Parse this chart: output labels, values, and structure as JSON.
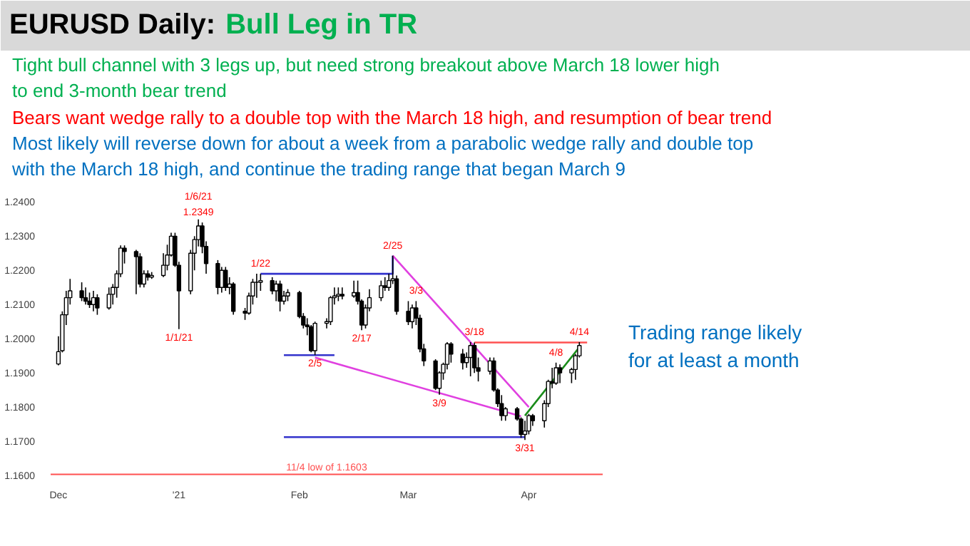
{
  "chart_data": {
    "type": "candlestick",
    "title": "EURUSD Daily:",
    "subtitle": "Bull Leg in TR",
    "color": "#000000",
    "x": [
      "2020-12-01",
      "2020-12-02",
      "2020-12-03",
      "2020-12-04",
      "2020-12-07",
      "2020-12-08",
      "2020-12-09",
      "2020-12-10",
      "2020-12-11",
      "2020-12-14",
      "2020-12-15",
      "2020-12-16",
      "2020-12-17",
      "2020-12-18",
      "2020-12-21",
      "2020-12-22",
      "2020-12-23",
      "2020-12-24",
      "2020-12-25",
      "2020-12-28",
      "2020-12-29",
      "2020-12-30",
      "2020-12-31",
      "2021-01-01",
      "2021-01-04",
      "2021-01-05",
      "2021-01-06",
      "2021-01-07",
      "2021-01-08",
      "2021-01-11",
      "2021-01-12",
      "2021-01-13",
      "2021-01-14",
      "2021-01-15",
      "2021-01-18",
      "2021-01-19",
      "2021-01-20",
      "2021-01-21",
      "2021-01-22",
      "2021-01-25",
      "2021-01-26",
      "2021-01-27",
      "2021-01-28",
      "2021-01-29",
      "2021-02-01",
      "2021-02-02",
      "2021-02-03",
      "2021-02-04",
      "2021-02-05",
      "2021-02-08",
      "2021-02-09",
      "2021-02-10",
      "2021-02-11",
      "2021-02-12",
      "2021-02-15",
      "2021-02-16",
      "2021-02-17",
      "2021-02-18",
      "2021-02-19",
      "2021-02-22",
      "2021-02-23",
      "2021-02-24",
      "2021-02-25",
      "2021-02-26",
      "2021-03-01",
      "2021-03-02",
      "2021-03-03",
      "2021-03-04",
      "2021-03-05",
      "2021-03-08",
      "2021-03-09",
      "2021-03-10",
      "2021-03-11",
      "2021-03-12",
      "2021-03-15",
      "2021-03-16",
      "2021-03-17",
      "2021-03-18",
      "2021-03-19",
      "2021-03-22",
      "2021-03-23",
      "2021-03-24",
      "2021-03-25",
      "2021-03-26",
      "2021-03-29",
      "2021-03-30",
      "2021-03-31",
      "2021-04-01",
      "2021-04-02",
      "2021-04-05",
      "2021-04-06",
      "2021-04-07",
      "2021-04-08",
      "2021-04-09",
      "2021-04-12",
      "2021-04-13",
      "2021-04-14"
    ],
    "ohlc": [
      [
        1.1926,
        1.2007,
        1.1922,
        1.1962
      ],
      [
        1.1965,
        1.208,
        1.196,
        1.207
      ],
      [
        1.207,
        1.214,
        1.204,
        1.212
      ],
      [
        1.212,
        1.2175,
        1.21,
        1.214
      ],
      [
        1.214,
        1.2165,
        1.211,
        1.212
      ],
      [
        1.212,
        1.215,
        1.21,
        1.211
      ],
      [
        1.211,
        1.2135,
        1.209,
        1.21
      ],
      [
        1.21,
        1.214,
        1.208,
        1.212
      ],
      [
        1.212,
        1.213,
        1.207,
        1.209
      ],
      [
        1.209,
        1.215,
        1.2085,
        1.213
      ],
      [
        1.213,
        1.216,
        1.21,
        1.215
      ],
      [
        1.215,
        1.22,
        1.212,
        1.219
      ],
      [
        1.219,
        1.2273,
        1.218,
        1.2265
      ],
      [
        1.2265,
        1.2273,
        1.222,
        1.2255
      ],
      [
        1.2255,
        1.226,
        1.213,
        1.224
      ],
      [
        1.224,
        1.225,
        1.215,
        1.216
      ],
      [
        1.216,
        1.22,
        1.215,
        1.219
      ],
      [
        1.219,
        1.22,
        1.217,
        1.218
      ],
      [
        1.218,
        1.2195,
        1.2175,
        1.2185
      ],
      [
        1.2185,
        1.225,
        1.218,
        1.2215
      ],
      [
        1.2215,
        1.2275,
        1.22,
        1.2245
      ],
      [
        1.2245,
        1.231,
        1.224,
        1.23
      ],
      [
        1.23,
        1.231,
        1.221,
        1.2215
      ],
      [
        1.2215,
        1.2225,
        1.2028,
        1.214
      ],
      [
        1.214,
        1.226,
        1.213,
        1.225
      ],
      [
        1.225,
        1.23,
        1.22,
        1.229
      ],
      [
        1.229,
        1.2349,
        1.227,
        1.233
      ],
      [
        1.233,
        1.234,
        1.225,
        1.227
      ],
      [
        1.227,
        1.2285,
        1.219,
        1.222
      ],
      [
        1.222,
        1.223,
        1.213,
        1.215
      ],
      [
        1.215,
        1.221,
        1.2135,
        1.22
      ],
      [
        1.22,
        1.221,
        1.214,
        1.215
      ],
      [
        1.215,
        1.218,
        1.213,
        1.216
      ],
      [
        1.216,
        1.2165,
        1.207,
        1.208
      ],
      [
        1.208,
        1.209,
        1.2055,
        1.2075
      ],
      [
        1.2075,
        1.2135,
        1.207,
        1.2125
      ],
      [
        1.2125,
        1.2175,
        1.21,
        1.2165
      ],
      [
        1.2165,
        1.219,
        1.212,
        1.2165
      ],
      [
        1.2165,
        1.219,
        1.214,
        1.217
      ],
      [
        1.217,
        1.218,
        1.213,
        1.214
      ],
      [
        1.214,
        1.217,
        1.211,
        1.216
      ],
      [
        1.216,
        1.217,
        1.208,
        1.211
      ],
      [
        1.211,
        1.214,
        1.21,
        1.2125
      ],
      [
        1.2125,
        1.2145,
        1.211,
        1.2135
      ],
      [
        1.2135,
        1.214,
        1.206,
        1.2065
      ],
      [
        1.2065,
        1.2075,
        1.203,
        1.204
      ],
      [
        1.204,
        1.206,
        1.201,
        1.2035
      ],
      [
        1.2035,
        1.204,
        1.196,
        1.1965
      ],
      [
        1.1965,
        1.205,
        1.1952,
        1.2045
      ],
      [
        1.2045,
        1.206,
        1.203,
        1.205
      ],
      [
        1.205,
        1.2125,
        1.204,
        1.212
      ],
      [
        1.212,
        1.215,
        1.21,
        1.2125
      ],
      [
        1.2125,
        1.215,
        1.211,
        1.213
      ],
      [
        1.213,
        1.215,
        1.2115,
        1.2125
      ],
      [
        1.2125,
        1.217,
        1.212,
        1.2135
      ],
      [
        1.2135,
        1.217,
        1.21,
        1.211
      ],
      [
        1.211,
        1.2115,
        1.2025,
        1.204
      ],
      [
        1.204,
        1.21,
        1.203,
        1.209
      ],
      [
        1.209,
        1.2145,
        1.208,
        1.212
      ],
      [
        1.212,
        1.217,
        1.211,
        1.2155
      ],
      [
        1.2155,
        1.218,
        1.214,
        1.215
      ],
      [
        1.215,
        1.219,
        1.214,
        1.217
      ],
      [
        1.217,
        1.2243,
        1.216,
        1.2175
      ],
      [
        1.2175,
        1.2185,
        1.207,
        1.208
      ],
      [
        1.208,
        1.211,
        1.204,
        1.205
      ],
      [
        1.205,
        1.21,
        1.203,
        1.209
      ],
      [
        1.209,
        1.211,
        1.204,
        1.206
      ],
      [
        1.206,
        1.207,
        1.196,
        1.197
      ],
      [
        1.197,
        1.1985,
        1.192,
        1.1935
      ],
      [
        1.1935,
        1.194,
        1.185,
        1.1855
      ],
      [
        1.1855,
        1.1905,
        1.1836,
        1.19
      ],
      [
        1.19,
        1.193,
        1.188,
        1.1925
      ],
      [
        1.1925,
        1.199,
        1.191,
        1.1985
      ],
      [
        1.1985,
        1.199,
        1.193,
        1.1955
      ],
      [
        1.1955,
        1.197,
        1.191,
        1.193
      ],
      [
        1.193,
        1.196,
        1.1915,
        1.1945
      ],
      [
        1.1945,
        1.199,
        1.189,
        1.198
      ],
      [
        1.198,
        1.1989,
        1.19,
        1.1915
      ],
      [
        1.1915,
        1.1945,
        1.1875,
        1.1905
      ],
      [
        1.1905,
        1.1945,
        1.1895,
        1.1935
      ],
      [
        1.1935,
        1.1945,
        1.1845,
        1.185
      ],
      [
        1.185,
        1.1855,
        1.18,
        1.181
      ],
      [
        1.181,
        1.1835,
        1.176,
        1.1775
      ],
      [
        1.1775,
        1.18,
        1.176,
        1.1795
      ],
      [
        1.1795,
        1.18,
        1.176,
        1.1765
      ],
      [
        1.1765,
        1.177,
        1.171,
        1.172
      ],
      [
        1.172,
        1.176,
        1.1704,
        1.173
      ],
      [
        1.173,
        1.178,
        1.172,
        1.1775
      ],
      [
        1.1775,
        1.178,
        1.1745,
        1.176
      ],
      [
        1.176,
        1.182,
        1.174,
        1.181
      ],
      [
        1.181,
        1.188,
        1.18,
        1.1875
      ],
      [
        1.1875,
        1.1915,
        1.1855,
        1.187
      ],
      [
        1.187,
        1.193,
        1.1865,
        1.1915
      ],
      [
        1.1915,
        1.1925,
        1.187,
        1.19
      ],
      [
        1.19,
        1.1915,
        1.187,
        1.191
      ],
      [
        1.191,
        1.1955,
        1.188,
        1.195
      ],
      [
        1.195,
        1.199,
        1.1945,
        1.198
      ]
    ],
    "series": [
      {
        "type": "line",
        "color": "#3333cc",
        "x": [
          "2021-01-22",
          "2021-02-25",
          "2021-02-25"
        ],
        "values": [
          1.219,
          1.219,
          1.2243
        ]
      },
      {
        "type": "line",
        "color": "#3333cc",
        "x": [
          "2021-01-28",
          "2021-02-10"
        ],
        "values": [
          1.1952,
          1.1952
        ]
      },
      {
        "type": "line",
        "color": "#3333cc",
        "x": [
          "2021-01-28",
          "2021-03-31"
        ],
        "values": [
          1.1712,
          1.1712
        ]
      },
      {
        "type": "line",
        "color": "#e040e0",
        "x": [
          "2021-02-25",
          "2021-04-01"
        ],
        "values": [
          1.2243,
          1.18
        ]
      },
      {
        "type": "line",
        "color": "#e040e0",
        "x": [
          "2021-02-05",
          "2021-03-30"
        ],
        "values": [
          1.1945,
          1.1773
        ]
      },
      {
        "type": "line",
        "color": "#1a8c1a",
        "x": [
          "2021-03-31",
          "2021-04-14"
        ],
        "values": [
          1.1775,
          1.1975
        ]
      },
      {
        "type": "line",
        "color": "#ff5050",
        "x": [
          "2021-03-18",
          "2021-04-16"
        ],
        "values": [
          1.1989,
          1.1989
        ]
      }
    ],
    "xlim": [
      "2020-11-29",
      "2021-04-20"
    ],
    "ylim": [
      1.16,
      1.2455
    ],
    "xticks": [
      {
        "value": "2020-12-01",
        "label": "Dec"
      },
      {
        "value": "2021-01-01",
        "label": "'21"
      },
      {
        "value": "2021-02-01",
        "label": "Feb"
      },
      {
        "value": "2021-03-01",
        "label": "Mar"
      },
      {
        "value": "2021-04-01",
        "label": "Apr"
      }
    ],
    "yticks": [
      {
        "value": 1.16,
        "label": "1.1600"
      },
      {
        "value": 1.17,
        "label": "1.1700"
      },
      {
        "value": 1.18,
        "label": "1.1800"
      },
      {
        "value": 1.19,
        "label": "1.1900"
      },
      {
        "value": 1.2,
        "label": "1.2000"
      },
      {
        "value": 1.21,
        "label": "1.2100"
      },
      {
        "value": 1.22,
        "label": "1.2200"
      },
      {
        "value": 1.23,
        "label": "1.2300"
      },
      {
        "value": 1.24,
        "label": "1.2400"
      }
    ],
    "ref_lines": [
      {
        "axis": "y",
        "value": 1.1603,
        "label": "11/4 low of 1.1603",
        "color": "#ff5050"
      }
    ],
    "annotations": [
      "Tight bull channel with 3 legs up, but need strong breakout above March 18 lower high",
      "to end 3-month bear trend",
      "Bears want wedge rally to a double top with the March 18 high, and resumption of bear trend",
      "Most likely will reverse down for about a week from a parabolic wedge rally and double top",
      "with the March 18 high, and continue the trading range that began March 9",
      "Trading range likely",
      "for at least a month",
      {
        "text": "1.2349",
        "x": "2021-01-06",
        "y": 1.2349
      },
      {
        "text": "1/6/21",
        "x": "2021-01-06",
        "y": 1.2349
      },
      {
        "text": "1/1/21",
        "x": "2021-01-01",
        "y": 1.2028
      },
      {
        "text": "1/22",
        "x": "2021-01-22",
        "y": 1.219
      },
      {
        "text": "2/5",
        "x": "2021-02-05",
        "y": 1.1952
      },
      {
        "text": "2/17",
        "x": "2021-02-17",
        "y": 1.2025
      },
      {
        "text": "2/25",
        "x": "2021-02-25",
        "y": 1.2243
      },
      {
        "text": "3/3",
        "x": "2021-03-03",
        "y": 1.211
      },
      {
        "text": "3/9",
        "x": "2021-03-09",
        "y": 1.1836
      },
      {
        "text": "3/18",
        "x": "2021-03-18",
        "y": 1.1989
      },
      {
        "text": "3/31",
        "x": "2021-03-31",
        "y": 1.1704
      },
      {
        "text": "4/8",
        "x": "2021-04-08",
        "y": 1.193
      },
      {
        "text": "4/14",
        "x": "2021-04-14",
        "y": 1.199
      }
    ]
  }
}
